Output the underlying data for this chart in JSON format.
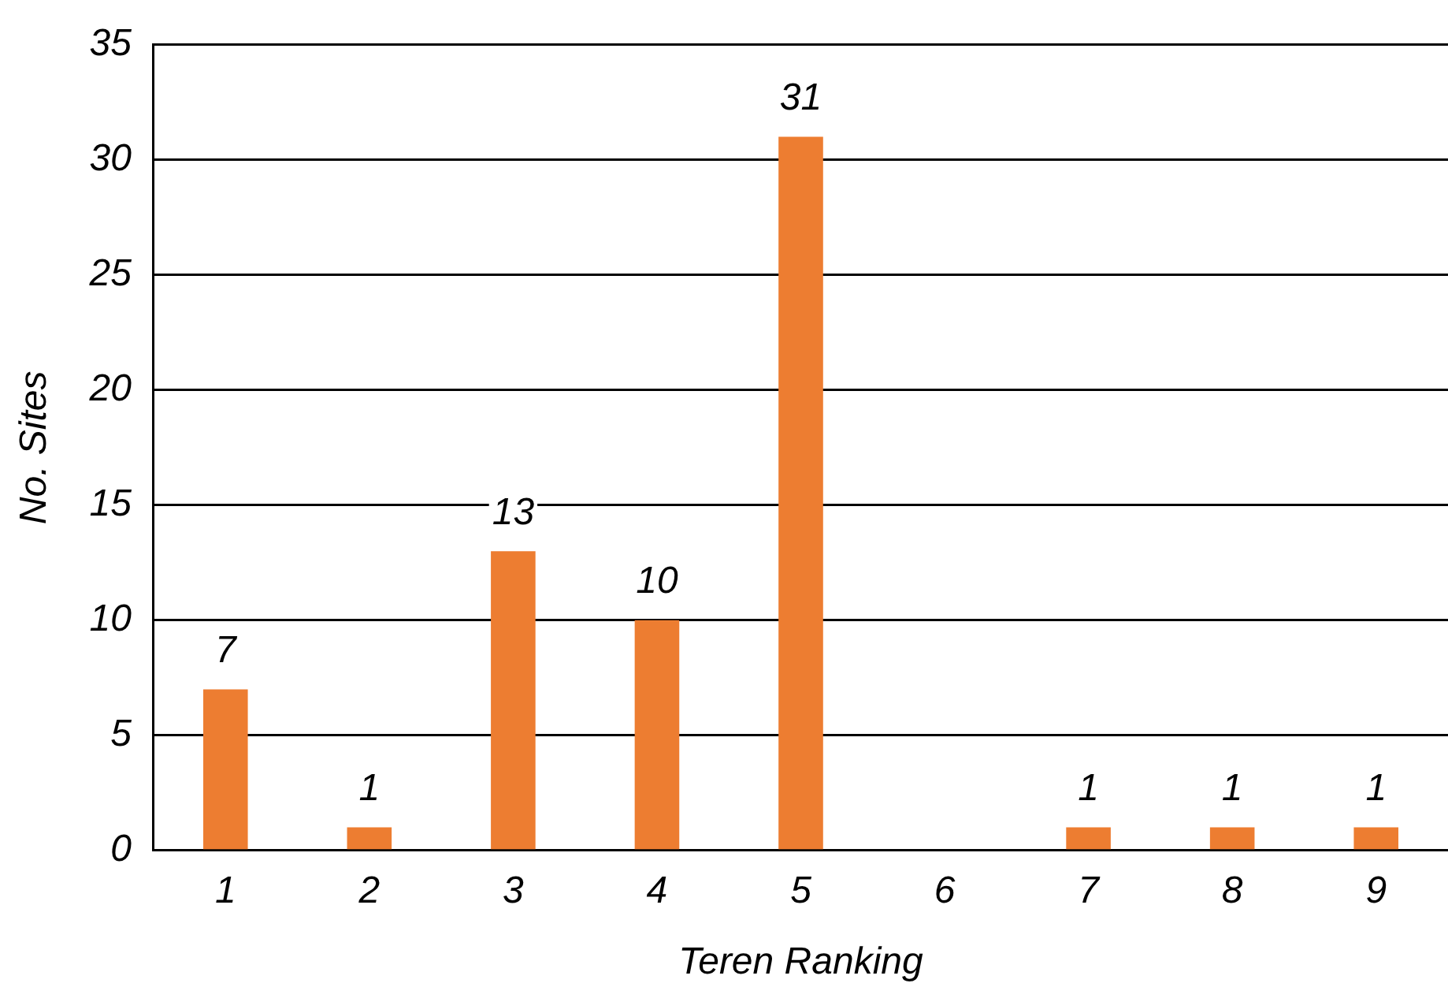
{
  "chart_data": {
    "type": "bar",
    "xlabel": "Teren Ranking",
    "ylabel": "No. Sites",
    "categories": [
      "1",
      "2",
      "3",
      "4",
      "5",
      "6",
      "7",
      "8",
      "9"
    ],
    "values": [
      7,
      1,
      13,
      10,
      31,
      0,
      1,
      1,
      1
    ],
    "value_labels": [
      "7",
      "1",
      "13",
      "10",
      "31",
      null,
      "1",
      "1",
      "1"
    ],
    "color": "#ed7d31",
    "ylim": [
      0,
      35
    ],
    "yticks": [
      0,
      5,
      10,
      15,
      20,
      25,
      30,
      35
    ],
    "grid": "y",
    "legend": false
  }
}
